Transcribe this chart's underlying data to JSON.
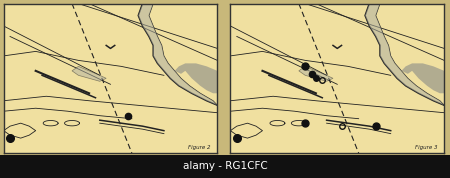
{
  "bg_color": "#c8b87a",
  "panel_bg": "#f0e0a0",
  "border_color": "#333333",
  "figure_labels": [
    "Figure 2",
    "Figure 3"
  ],
  "watermark_text": "alamy - RG1CFC",
  "watermark_bg": "#111111",
  "watermark_color": "#ffffff",
  "gray_fill": "#b0b0a0",
  "dark_fill": "#909088",
  "line_color": "#222222",
  "dot_color": "#111111",
  "label_color": "#222222"
}
